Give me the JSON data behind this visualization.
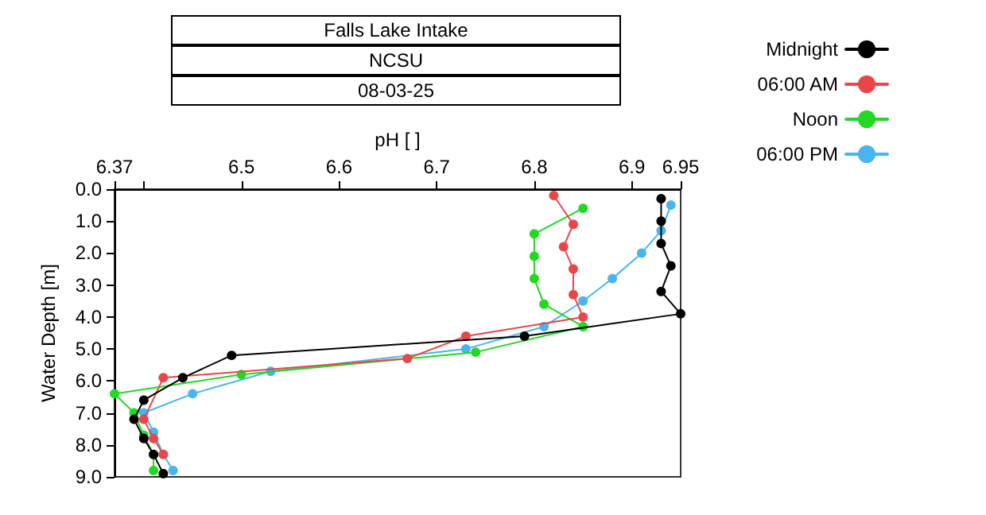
{
  "chart_data": {
    "type": "line",
    "title": "Falls Lake Intake",
    "subtitle": "NCSU",
    "annotations": [
      "08-03-25"
    ],
    "xlabel": "pH [ ]",
    "ylabel": "Water Depth [m]",
    "xlim": [
      6.37,
      6.95
    ],
    "xticks": [
      6.37,
      {
        "value": 6.4,
        "label": null
      },
      6.5,
      6.6,
      6.7,
      6.8,
      6.9,
      6.95
    ],
    "ylim": [
      9,
      0
    ],
    "yticks": [
      {
        "value": 0,
        "label": "0.0"
      },
      {
        "value": 1,
        "label": "1.0"
      },
      {
        "value": 2,
        "label": "2.0"
      },
      {
        "value": 3,
        "label": "3.0"
      },
      {
        "value": 4,
        "label": "4.0"
      },
      {
        "value": 5,
        "label": "5.0"
      },
      {
        "value": 6,
        "label": "6.0"
      },
      {
        "value": 7,
        "label": "7.0"
      },
      {
        "value": 8,
        "label": "8.0"
      },
      {
        "value": 9,
        "label": "9.0"
      }
    ],
    "grid": false,
    "legend": "top right",
    "marker": "circle",
    "line_style": "solid",
    "series": [
      {
        "name": "Midnight",
        "color": "#000000",
        "x": [
          6.93,
          6.93,
          6.93,
          6.94,
          6.93,
          6.95,
          6.79,
          6.49,
          6.44,
          6.4,
          6.39,
          6.4,
          6.41,
          6.42
        ],
        "values": [
          0.3,
          1.0,
          1.7,
          2.4,
          3.2,
          3.9,
          4.6,
          5.2,
          5.9,
          6.6,
          7.2,
          7.8,
          8.3,
          8.9
        ]
      },
      {
        "name": "06:00 AM",
        "color": "#e8474a",
        "x": [
          6.82,
          6.84,
          6.83,
          6.84,
          6.84,
          6.85,
          6.73,
          6.67,
          6.42,
          6.4,
          6.41,
          6.42
        ],
        "values": [
          0.2,
          1.1,
          1.8,
          2.5,
          3.3,
          4.0,
          4.6,
          5.3,
          5.9,
          7.2,
          7.8,
          8.3
        ]
      },
      {
        "name": "Noon",
        "color": "#22d822",
        "x": [
          6.85,
          6.8,
          6.8,
          6.8,
          6.81,
          6.85,
          6.74,
          6.5,
          6.37,
          6.39,
          6.4,
          6.41,
          6.41
        ],
        "values": [
          0.6,
          1.4,
          2.1,
          2.8,
          3.6,
          4.3,
          5.1,
          5.8,
          6.4,
          7.0,
          7.7,
          8.3,
          8.8
        ]
      },
      {
        "name": "06:00 PM",
        "color": "#4ab4ee",
        "x": [
          6.94,
          6.93,
          6.91,
          6.88,
          6.85,
          6.81,
          6.73,
          6.53,
          6.45,
          6.4,
          6.41,
          6.42,
          6.43
        ],
        "values": [
          0.5,
          1.3,
          2.0,
          2.8,
          3.5,
          4.3,
          5.0,
          5.7,
          6.4,
          7.0,
          7.6,
          8.3,
          8.8
        ]
      }
    ]
  }
}
